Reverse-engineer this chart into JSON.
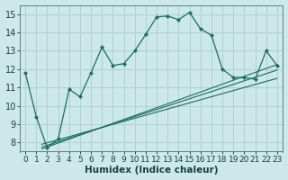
{
  "xlabel": "Humidex (Indice chaleur)",
  "ylabel": "",
  "bg_color": "#cce8e8",
  "grid_color": "#b0d0d0",
  "line_color": "#1a6e60",
  "xlim": [
    -0.5,
    23.5
  ],
  "ylim": [
    7.5,
    15.5
  ],
  "xticks": [
    0,
    1,
    2,
    3,
    4,
    5,
    6,
    7,
    8,
    9,
    10,
    11,
    12,
    13,
    14,
    15,
    16,
    17,
    18,
    19,
    20,
    21,
    22,
    23
  ],
  "yticks": [
    8,
    9,
    10,
    11,
    12,
    13,
    14,
    15
  ],
  "main_x": [
    0,
    1,
    2,
    3,
    4,
    5,
    6,
    7,
    8,
    9,
    10,
    11,
    12,
    13,
    14,
    15,
    16,
    17,
    18,
    19,
    20,
    21,
    22,
    23
  ],
  "main_y": [
    11.8,
    9.4,
    7.7,
    8.2,
    10.9,
    10.5,
    11.8,
    13.2,
    12.2,
    12.3,
    13.0,
    13.9,
    14.85,
    14.9,
    14.7,
    15.1,
    14.2,
    13.85,
    12.0,
    11.55,
    11.55,
    11.45,
    13.0,
    12.2
  ],
  "reg_lines": [
    {
      "x": [
        1.5,
        23
      ],
      "y": [
        7.9,
        11.5
      ]
    },
    {
      "x": [
        1.5,
        23
      ],
      "y": [
        7.75,
        11.95
      ]
    },
    {
      "x": [
        1.5,
        23
      ],
      "y": [
        7.65,
        12.25
      ]
    }
  ],
  "xlabel_fontsize": 7.5,
  "ytick_fontsize": 7,
  "xtick_fontsize": 6.5
}
